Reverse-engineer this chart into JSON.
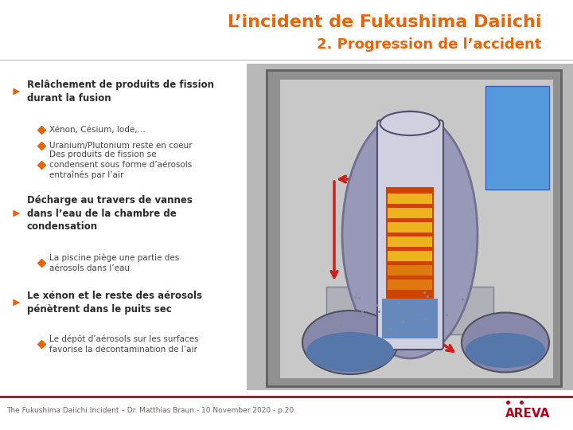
{
  "title_line1": "L’incident de Fukushima Daiichi",
  "title_line2": "2. Progression de l’accident",
  "title_color": "#e8640a",
  "bg_color": "#ffffff",
  "orange_color": "#e8640a",
  "bullet1_header": "Relâchement de produits de fission\ndurant la fusion",
  "bullet1_subs": [
    "Xénon, Césium, Iode,...",
    "Uranium/Plutonium reste en coeur",
    "Des produits de fission se\ncondensent sous forme d’aérosols\nentraînés par l’air"
  ],
  "bullet2_header": "Décharge au travers de vannes\ndans l’eau de la chambre de\ncondensation",
  "bullet2_subs": [
    "La piscine piège une partie des\naérosols dans l’eau"
  ],
  "bullet3_header": "Le xénon et le reste des aérosols\npénètrent dans le puits sec",
  "bullet3_subs": [
    "Le dépôt d’aérosols sur les surfaces\nfavorise la décontamination de l’air"
  ],
  "arrow_color": "#e8640a",
  "diamond_color": "#e8640a",
  "footer_text": "The Fukushima Daiichi Incident – Dr. Matthias Braun - 10 November 2020 - p.20",
  "footer_color": "#666666",
  "areva_color": "#b5001e",
  "separator_color": "#b5001e",
  "panel_bg": "#b8b8b8",
  "dark_text": "#2a2a2a",
  "med_text": "#444444"
}
